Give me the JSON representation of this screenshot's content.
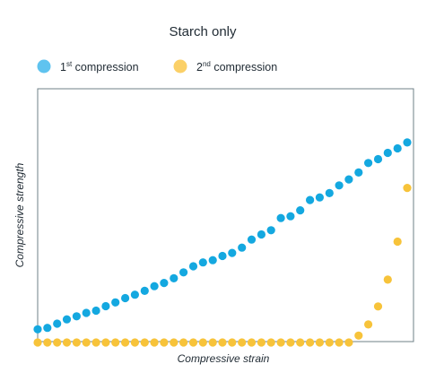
{
  "chart_data": {
    "type": "scatter",
    "title": "Starch only",
    "xlabel": "Compressive strain",
    "ylabel": "Compressive strength",
    "xlim": [
      0,
      38
    ],
    "ylim": [
      0,
      100
    ],
    "grid": false,
    "legend_placement": "top-left",
    "series": [
      {
        "name_base": "1",
        "name_sup": "st",
        "name_rest": " compression",
        "color": "#14a8e0",
        "legend_color": "#5fc3ef",
        "x": [
          0,
          1,
          2,
          3,
          4,
          5,
          6,
          7,
          8,
          9,
          10,
          11,
          12,
          13,
          14,
          15,
          16,
          17,
          18,
          19,
          20,
          21,
          22,
          23,
          24,
          25,
          26,
          27,
          28,
          29,
          30,
          31,
          32,
          33,
          34,
          35,
          36,
          37,
          38
        ],
        "y": [
          6.5,
          7.2,
          9.3,
          11.4,
          12.9,
          14.6,
          15.7,
          17.9,
          19.8,
          21.9,
          23.6,
          25.5,
          27.8,
          29.4,
          31.7,
          34.6,
          37.6,
          39.5,
          40.6,
          42.7,
          44.2,
          46.8,
          50.8,
          53.3,
          55.4,
          61.4,
          62.3,
          65.2,
          70.3,
          71.6,
          73.7,
          77.5,
          80.5,
          83.9,
          88.6,
          90.5,
          93.6,
          95.8,
          98.7
        ]
      },
      {
        "name_base": "2",
        "name_sup": "nd",
        "name_rest": " compression",
        "color": "#f7c33a",
        "legend_color": "#fbd067",
        "x": [
          0,
          1,
          2,
          3,
          4,
          5,
          6,
          7,
          8,
          9,
          10,
          11,
          12,
          13,
          14,
          15,
          16,
          17,
          18,
          19,
          20,
          21,
          22,
          23,
          24,
          25,
          26,
          27,
          28,
          29,
          30,
          31,
          32,
          33,
          34,
          35,
          36,
          37,
          38
        ],
        "y": [
          0,
          0,
          0,
          0,
          0,
          0,
          0,
          0,
          0,
          0,
          0,
          0,
          0,
          0,
          0,
          0,
          0,
          0,
          0,
          0,
          0,
          0,
          0,
          0,
          0,
          0,
          0,
          0,
          0,
          0,
          0,
          0,
          0,
          3.4,
          8.9,
          17.8,
          31.0,
          49.8,
          76.3
        ]
      }
    ]
  }
}
